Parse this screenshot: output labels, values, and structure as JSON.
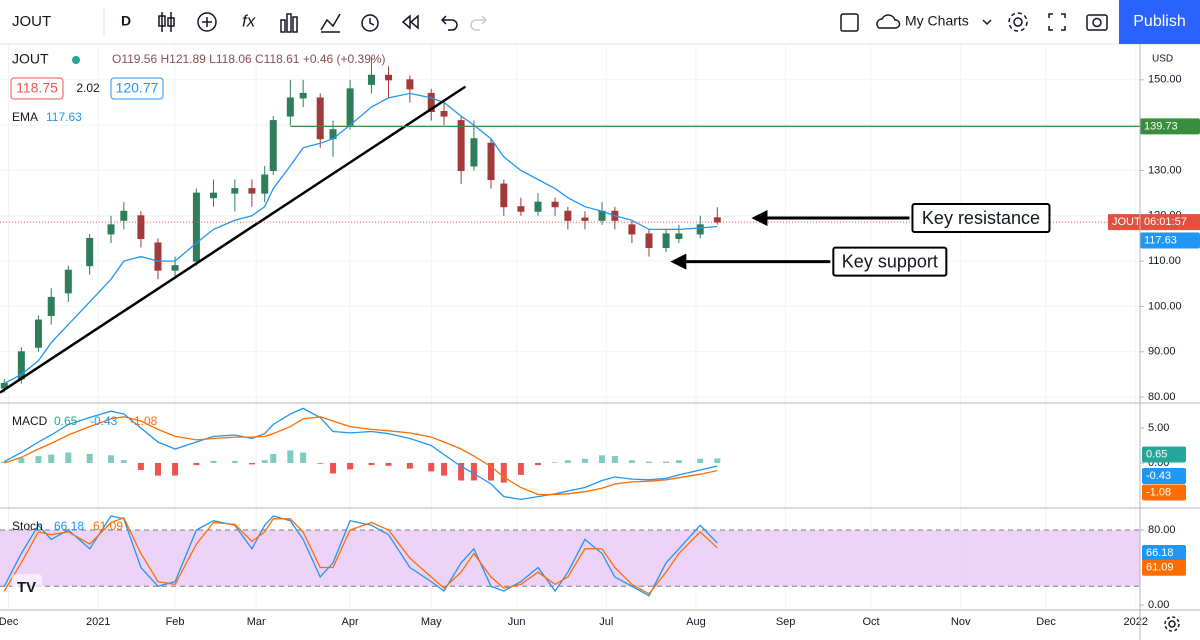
{
  "toolbar": {
    "symbol": "JOUT",
    "interval": "D",
    "layouts": "My Charts",
    "publish": "Publish"
  },
  "chart_data": [
    {
      "type": "candlestick",
      "title": "JOUT",
      "ohlc": "O119.56 H121.89 L118.06 C118.61 +0.46 (+0.39%)",
      "bid": 118.75,
      "spread": 2.02,
      "ask": 120.77,
      "currency": "USD",
      "countdown": "06:01:57",
      "x": [
        1,
        5,
        9,
        12,
        16,
        21,
        26,
        29,
        33,
        37,
        41,
        46,
        50,
        55,
        59,
        62,
        64,
        68,
        71,
        75,
        78,
        82,
        87,
        91,
        96,
        101,
        104,
        108,
        111,
        115,
        118,
        122,
        126,
        130,
        133,
        137,
        141,
        144,
        148,
        152,
        156,
        159,
        164,
        168
      ],
      "open": [
        82,
        84,
        91,
        98,
        103,
        109,
        116,
        119,
        120,
        114,
        108,
        110,
        124,
        125,
        126,
        125,
        130,
        142,
        146,
        146,
        137,
        140,
        149,
        151,
        150,
        147,
        143,
        141,
        131,
        136,
        127,
        122,
        121,
        123,
        121,
        119.5,
        119,
        121,
        118,
        116,
        113,
        115,
        116,
        119.56
      ],
      "high": [
        84,
        91,
        98,
        104,
        109,
        116,
        120,
        123,
        121,
        115,
        111,
        126,
        128,
        128,
        128,
        131,
        142,
        150,
        150,
        147,
        141,
        150,
        155,
        153,
        151,
        148,
        145,
        142,
        141,
        137,
        128,
        124,
        125,
        124,
        122,
        121,
        123,
        122,
        119,
        117,
        117,
        118,
        120,
        121.89
      ],
      "low": [
        81,
        83,
        90,
        96,
        101,
        107,
        114,
        117,
        113,
        106,
        106,
        109,
        122,
        121,
        122,
        123,
        129,
        140,
        144,
        135,
        133,
        139,
        147,
        146,
        145,
        141,
        140,
        127,
        130,
        126,
        120,
        120,
        120,
        120,
        117,
        117,
        118,
        117,
        114,
        111,
        112,
        114,
        115,
        118.06
      ],
      "close": [
        83,
        90,
        97,
        102,
        108,
        115,
        118,
        121,
        115,
        108,
        109,
        125,
        125,
        126,
        125,
        129,
        141,
        146,
        147,
        137,
        139,
        148,
        151,
        150,
        148,
        143,
        142,
        130,
        137,
        128,
        122,
        121,
        123,
        122,
        119,
        119,
        121,
        119,
        116,
        113,
        116,
        116,
        118,
        118.61
      ],
      "up_color": "#2e7d5b",
      "down_color": "#a33a3a",
      "ema": {
        "name": "EMA",
        "color": "#2196f3",
        "values": [
          83,
          85,
          88,
          92,
          96,
          101,
          106,
          110,
          111,
          110,
          110,
          114,
          117,
          119,
          120,
          122,
          126,
          131,
          135,
          136,
          137,
          140,
          144,
          146,
          147,
          146,
          145,
          142,
          140,
          137,
          133,
          130,
          128,
          126,
          124,
          122,
          121,
          120,
          119,
          117,
          117,
          117,
          117.3,
          117.63
        ]
      },
      "xlim": [
        0,
        267
      ],
      "ylim": [
        78.7,
        157.9
      ],
      "yticks": [
        {
          "value": 150,
          "label": "150.00"
        },
        {
          "value": 140,
          "label": "140.00"
        },
        {
          "value": 130,
          "label": "130.00"
        },
        {
          "value": 120,
          "label": "120.00"
        },
        {
          "value": 110,
          "label": "110.00"
        },
        {
          "value": 100,
          "label": "100.00"
        },
        {
          "value": 90,
          "label": "90.00"
        },
        {
          "value": 80,
          "label": "80.00"
        }
      ],
      "trendline": {
        "x": [
          0,
          109
        ],
        "y": [
          81,
          148.5
        ],
        "color": "#000000"
      },
      "resistance": {
        "x": 68,
        "value": 139.73,
        "color": "#388e3c"
      },
      "annotations": [
        {
          "text": "Key resistance",
          "x": 176,
          "y": 119.5
        },
        {
          "text": "Key support",
          "x": 157,
          "y": 109.9
        }
      ]
    },
    {
      "type": "macd",
      "title": "MACD",
      "histogram": {
        "up_color": "#80cbc4",
        "down_color": "#ef5350",
        "legend_color": "#26a69a",
        "values": [
          0.2,
          0.7,
          1,
          1.2,
          1.5,
          1.3,
          1.1,
          0.4,
          -1,
          -1.8,
          -1.8,
          -0.3,
          0.3,
          0.3,
          -0.2,
          0.4,
          1.3,
          1.8,
          1.5,
          -0.1,
          -1.5,
          -0.9,
          -0.3,
          -0.4,
          -0.8,
          -1.2,
          -1.8,
          -2.5,
          -2.5,
          -2.5,
          -2.8,
          -1.7,
          -0.3,
          0.1,
          0.4,
          0.6,
          1.1,
          1,
          0.4,
          0.2,
          0.2,
          0.4,
          0.6,
          0.65
        ]
      },
      "macd": {
        "color": "#2196f3",
        "values": [
          0.2,
          1.5,
          3,
          4,
          5.5,
          6.5,
          7.4,
          7,
          5,
          3,
          2,
          3,
          3.8,
          4,
          3.5,
          4.2,
          5.5,
          7,
          7.8,
          6.5,
          4.5,
          4.3,
          4.5,
          4.2,
          3.5,
          2.5,
          1.2,
          -0.5,
          -1.5,
          -3,
          -4.8,
          -5.2,
          -4.8,
          -4.4,
          -4,
          -3.5,
          -2.5,
          -2,
          -2.3,
          -2.4,
          -2.2,
          -1.7,
          -1,
          -0.43
        ]
      },
      "signal": {
        "color": "#ff6d00",
        "values": [
          0,
          0.8,
          2,
          2.8,
          4,
          5.2,
          6.3,
          6.6,
          6,
          4.8,
          3.8,
          3.3,
          3.5,
          3.7,
          3.7,
          3.8,
          4.2,
          5.2,
          6.3,
          6.6,
          6,
          5.2,
          4.8,
          4.6,
          4.3,
          3.7,
          3,
          2,
          1,
          -0.5,
          -2,
          -3.5,
          -4.5,
          -4.5,
          -4.4,
          -4.1,
          -3.6,
          -3,
          -2.7,
          -2.6,
          -2.4,
          -2.1,
          -1.6,
          -1.08
        ]
      },
      "ylim": [
        -6.43,
        8.57
      ],
      "yticks": [
        {
          "value": 5,
          "label": "5.00"
        },
        {
          "value": 0,
          "label": "0.00"
        }
      ]
    },
    {
      "type": "stochastic",
      "title": "Stoch",
      "k": {
        "color": "#2196f3",
        "values": [
          20,
          55,
          85,
          70,
          80,
          60,
          95,
          92,
          40,
          20,
          25,
          80,
          90,
          85,
          60,
          85,
          95,
          90,
          70,
          30,
          45,
          90,
          85,
          75,
          40,
          25,
          15,
          45,
          60,
          20,
          15,
          25,
          40,
          15,
          35,
          70,
          55,
          30,
          20,
          10,
          45,
          60,
          85,
          66.18
        ]
      },
      "d": {
        "color": "#ff6d00",
        "values": [
          15,
          45,
          78,
          75,
          78,
          65,
          88,
          93,
          55,
          25,
          22,
          65,
          88,
          86,
          68,
          78,
          92,
          92,
          78,
          40,
          40,
          80,
          88,
          80,
          50,
          30,
          18,
          35,
          55,
          30,
          18,
          22,
          35,
          22,
          30,
          60,
          60,
          40,
          22,
          12,
          35,
          55,
          78,
          61.09
        ]
      },
      "band": [
        20,
        80
      ],
      "band_color": "#e9c8f5",
      "ylim": [
        -5.3,
        103.5
      ],
      "yticks": [
        {
          "value": 80,
          "label": "80.00"
        },
        {
          "value": 0,
          "label": "0.00"
        }
      ],
      "xticks": [
        {
          "value": 2,
          "label": "Dec"
        },
        {
          "value": 23,
          "label": "2021"
        },
        {
          "value": 41,
          "label": "Feb"
        },
        {
          "value": 60,
          "label": "Mar"
        },
        {
          "value": 82,
          "label": "Apr"
        },
        {
          "value": 101,
          "label": "May"
        },
        {
          "value": 121,
          "label": "Jun"
        },
        {
          "value": 142,
          "label": "Jul"
        },
        {
          "value": 163,
          "label": "Aug"
        },
        {
          "value": 184,
          "label": "Sep"
        },
        {
          "value": 204,
          "label": "Oct"
        },
        {
          "value": 225,
          "label": "Nov"
        },
        {
          "value": 245,
          "label": "Dec"
        },
        {
          "value": 266,
          "label": "2022"
        }
      ]
    }
  ]
}
